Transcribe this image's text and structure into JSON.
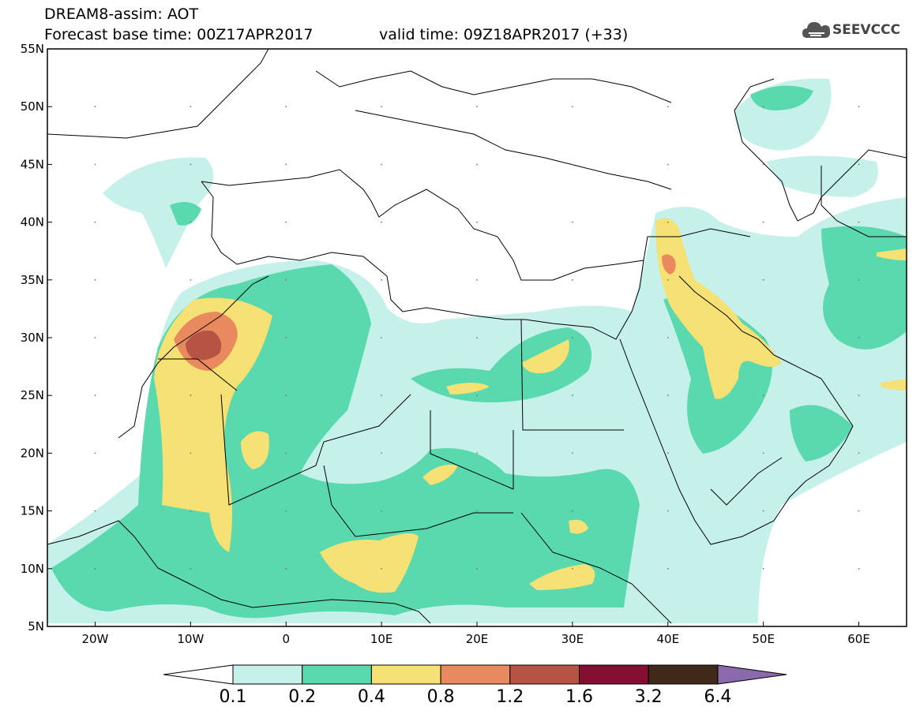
{
  "header": {
    "title_line1": "DREAM8-assim: AOT",
    "title_line2": "Forecast base time: 00Z17APR2017",
    "valid_time": "valid time: 09Z18APR2017 (+33)"
  },
  "logo": {
    "text": "SEEVCCC",
    "icon": "cloud-logo-icon"
  },
  "map": {
    "lat_labels": [
      "55N",
      "50N",
      "45N",
      "40N",
      "35N",
      "30N",
      "25N",
      "20N",
      "15N",
      "10N",
      "5N"
    ],
    "lon_labels": [
      "20W",
      "10W",
      "0",
      "10E",
      "20E",
      "30E",
      "40E",
      "50E",
      "60E"
    ],
    "lat_range": [
      5,
      55
    ],
    "lon_range": [
      -25,
      65
    ]
  },
  "colorbar": {
    "labels": [
      "0.1",
      "0.2",
      "0.4",
      "0.8",
      "1.2",
      "1.6",
      "3.2",
      "6.4"
    ],
    "colors": [
      "#c6f1ea",
      "#5ad9ae",
      "#f5e174",
      "#e98a5e",
      "#b65344",
      "#850f31",
      "#3f2a1a"
    ],
    "overflow_color": "#8a6aab",
    "underflow_color": "#ffffff"
  }
}
